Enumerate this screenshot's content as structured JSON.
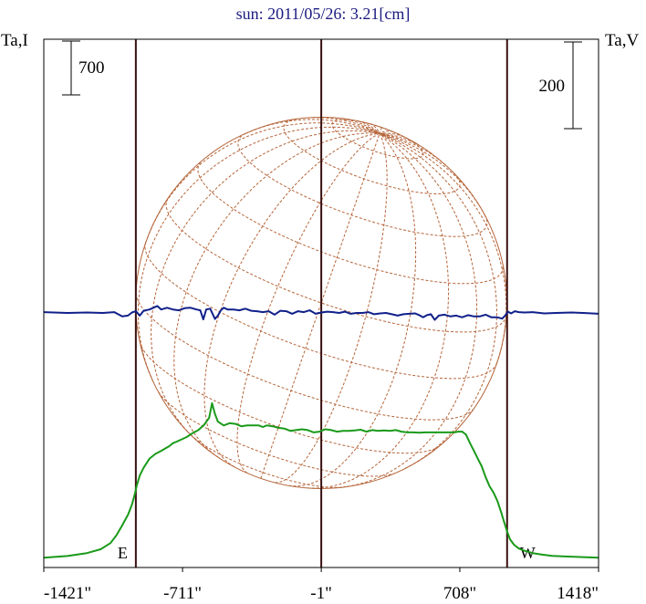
{
  "chart_data": {
    "type": "line",
    "title": "sun: 2011/05/26: 3.21[cm]",
    "left_axis_label": "Ta,I",
    "right_axis_label": "Ta,V",
    "xlim": [
      -1421,
      1418
    ],
    "x_ticks": [
      {
        "value": -1421,
        "label": "-1421\""
      },
      {
        "value": -711,
        "label": "-711\""
      },
      {
        "value": -1,
        "label": "-1\""
      },
      {
        "value": 708,
        "label": "708\""
      },
      {
        "value": 1418,
        "label": "1418\""
      }
    ],
    "limb_markers": [
      {
        "label": "E",
        "x": -950
      },
      {
        "label": "W",
        "x": 950
      }
    ],
    "center_line_x": -1,
    "scale_bars": {
      "left": {
        "label": "700",
        "value": 700
      },
      "right": {
        "label": "200",
        "value": 200
      }
    },
    "solar_disk": {
      "center_x": -1,
      "radius": 950,
      "grid": "heliographic",
      "color": "#b5653a"
    },
    "grid": false,
    "series": [
      {
        "axis": "left",
        "color": "#1a9a1a",
        "x": [
          -1421,
          -1300,
          -1200,
          -1130,
          -1080,
          -1050,
          -1020,
          -990,
          -970,
          -955,
          -945,
          -930,
          -910,
          -880,
          -850,
          -820,
          -800,
          -780,
          -760,
          -740,
          -715,
          -690,
          -660,
          -630,
          -600,
          -575,
          -560,
          -545,
          -530,
          -500,
          -470,
          -440,
          -410,
          -380,
          -350,
          -320,
          -300,
          -280,
          -250,
          -220,
          -190,
          -160,
          -130,
          -100,
          -70,
          -40,
          -10,
          20,
          50,
          80,
          110,
          140,
          170,
          200,
          230,
          260,
          290,
          320,
          350,
          380,
          410,
          440,
          470,
          500,
          530,
          560,
          590,
          620,
          650,
          680,
          700,
          720,
          740,
          760,
          780,
          800,
          820,
          840,
          860,
          880,
          900,
          920,
          935,
          950,
          965,
          985,
          1010,
          1040,
          1080,
          1130,
          1180,
          1260,
          1340,
          1418
        ],
        "y": [
          -490,
          -468,
          -430,
          -380,
          -300,
          -200,
          -70,
          70,
          200,
          340,
          450,
          580,
          680,
          800,
          860,
          900,
          930,
          960,
          1000,
          1020,
          1050,
          1080,
          1130,
          1170,
          1240,
          1330,
          1520,
          1380,
          1280,
          1230,
          1260,
          1250,
          1220,
          1230,
          1230,
          1230,
          1210,
          1230,
          1220,
          1200,
          1190,
          1160,
          1170,
          1180,
          1170,
          1140,
          1150,
          1180,
          1170,
          1150,
          1160,
          1160,
          1165,
          1175,
          1150,
          1170,
          1160,
          1165,
          1160,
          1170,
          1150,
          1140,
          1140,
          1135,
          1140,
          1140,
          1140,
          1140,
          1140,
          1140,
          1150,
          1150,
          1110,
          1000,
          900,
          800,
          700,
          560,
          440,
          360,
          250,
          100,
          -30,
          -150,
          -250,
          -320,
          -370,
          -400,
          -430,
          -450,
          -465,
          -475,
          -482,
          -490
        ]
      },
      {
        "axis": "right",
        "color": "#10208a",
        "x": [
          -1421,
          -1300,
          -1200,
          -1120,
          -1060,
          -1020,
          -990,
          -970,
          -950,
          -930,
          -910,
          -880,
          -860,
          -840,
          -820,
          -790,
          -760,
          -730,
          -700,
          -670,
          -640,
          -620,
          -605,
          -590,
          -570,
          -545,
          -530,
          -515,
          -500,
          -480,
          -450,
          -420,
          -390,
          -360,
          -330,
          -300,
          -270,
          -240,
          -210,
          -180,
          -150,
          -120,
          -90,
          -60,
          -30,
          0,
          30,
          60,
          90,
          120,
          150,
          180,
          210,
          240,
          270,
          300,
          330,
          360,
          390,
          420,
          450,
          480,
          500,
          520,
          540,
          560,
          580,
          600,
          630,
          660,
          690,
          720,
          750,
          780,
          810,
          840,
          870,
          900,
          925,
          940,
          955,
          970,
          990,
          1010,
          1040,
          1080,
          1140,
          1200,
          1280,
          1340,
          1418
        ],
        "y": [
          2,
          0,
          1,
          0,
          2,
          -8,
          -6,
          1,
          4,
          -6,
          5,
          8,
          12,
          16,
          8,
          12,
          8,
          6,
          11,
          12,
          8,
          6,
          -15,
          8,
          10,
          -14,
          -6,
          6,
          12,
          8,
          8,
          6,
          10,
          5,
          4,
          2,
          4,
          -4,
          5,
          4,
          -2,
          4,
          2,
          6,
          -2,
          1,
          3,
          2,
          0,
          3,
          -2,
          0,
          0,
          2,
          -3,
          -1,
          0,
          -3,
          -6,
          -3,
          -2,
          -1,
          -5,
          -10,
          -5,
          -3,
          -16,
          -6,
          -4,
          -8,
          -6,
          -10,
          -5,
          -8,
          -8,
          -4,
          -10,
          -10,
          -13,
          -6,
          3,
          -1,
          4,
          2,
          1,
          2,
          -1,
          0,
          1,
          0,
          -2
        ]
      }
    ]
  }
}
